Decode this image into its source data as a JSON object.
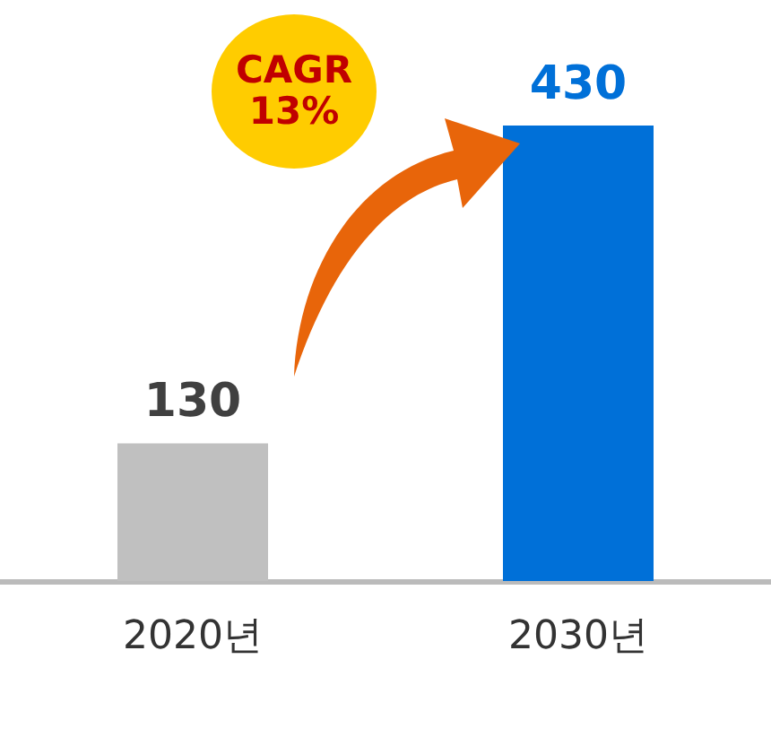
{
  "chart_data": {
    "type": "bar",
    "categories": [
      "2020년",
      "2030년"
    ],
    "values": [
      130,
      430
    ],
    "colors": [
      "#c0c0c0",
      "#0070d8"
    ],
    "value_labels": [
      "130",
      "430"
    ],
    "annotations": [
      "CAGR\n13%"
    ]
  }
}
